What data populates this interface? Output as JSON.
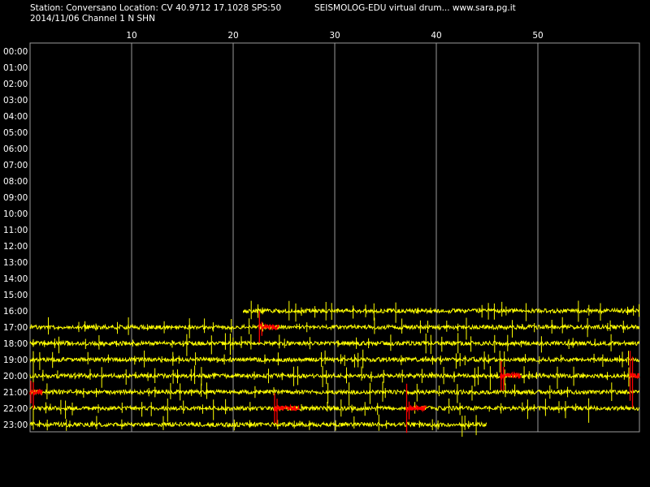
{
  "header": {
    "station_line": "Station: Conversano Location: CV 40.9712 17.1028 SPS:50",
    "date_channel_line": "2014/11/06  Channel 1 N SHN",
    "app_line": "SEISMOLOG-EDU virtual drum... www.sara.pg.it"
  },
  "chart_data": {
    "type": "line",
    "subtype": "seismic-helicorder",
    "x_tick_labels": [
      "10",
      "20",
      "30",
      "40",
      "50"
    ],
    "x_ticks": [
      10,
      20,
      30,
      40,
      50
    ],
    "xlim": [
      0,
      60
    ],
    "xunit": "minutes",
    "y_tick_labels": [
      "00:00",
      "01:00",
      "02:00",
      "03:00",
      "04:00",
      "05:00",
      "06:00",
      "07:00",
      "08:00",
      "09:00",
      "10:00",
      "11:00",
      "12:00",
      "13:00",
      "14:00",
      "15:00",
      "16:00",
      "17:00",
      "18:00",
      "19:00",
      "20:00",
      "21:00",
      "22:00",
      "23:00"
    ],
    "grid": "vertical lines at x ticks",
    "colors": {
      "background": "#000000",
      "trace": "#ffff00",
      "event": "#ff0000",
      "grid": "#9a9a9a",
      "text": "#ffffff"
    },
    "traces": [
      {
        "hour": 16,
        "start_min": 21.0,
        "end_min": 60.0
      },
      {
        "hour": 17,
        "start_min": 0.0,
        "end_min": 60.0
      },
      {
        "hour": 18,
        "start_min": 0.0,
        "end_min": 60.0
      },
      {
        "hour": 19,
        "start_min": 0.0,
        "end_min": 60.0
      },
      {
        "hour": 20,
        "start_min": 0.0,
        "end_min": 60.0
      },
      {
        "hour": 21,
        "start_min": 0.0,
        "end_min": 60.0
      },
      {
        "hour": 22,
        "start_min": 0.0,
        "end_min": 60.0
      },
      {
        "hour": 23,
        "start_min": 0.0,
        "end_min": 45.0
      }
    ],
    "events": [
      {
        "hour": 17,
        "start_min": 22.5,
        "end_min": 24.5
      },
      {
        "hour": 20,
        "start_min": 46.3,
        "end_min": 48.3
      },
      {
        "hour": 20,
        "start_min": 59.0,
        "end_min": 60.0
      },
      {
        "hour": 21,
        "start_min": 0.0,
        "end_min": 1.2
      },
      {
        "hour": 22,
        "start_min": 24.0,
        "end_min": 26.5
      },
      {
        "hour": 22,
        "start_min": 37.0,
        "end_min": 39.0
      }
    ]
  }
}
